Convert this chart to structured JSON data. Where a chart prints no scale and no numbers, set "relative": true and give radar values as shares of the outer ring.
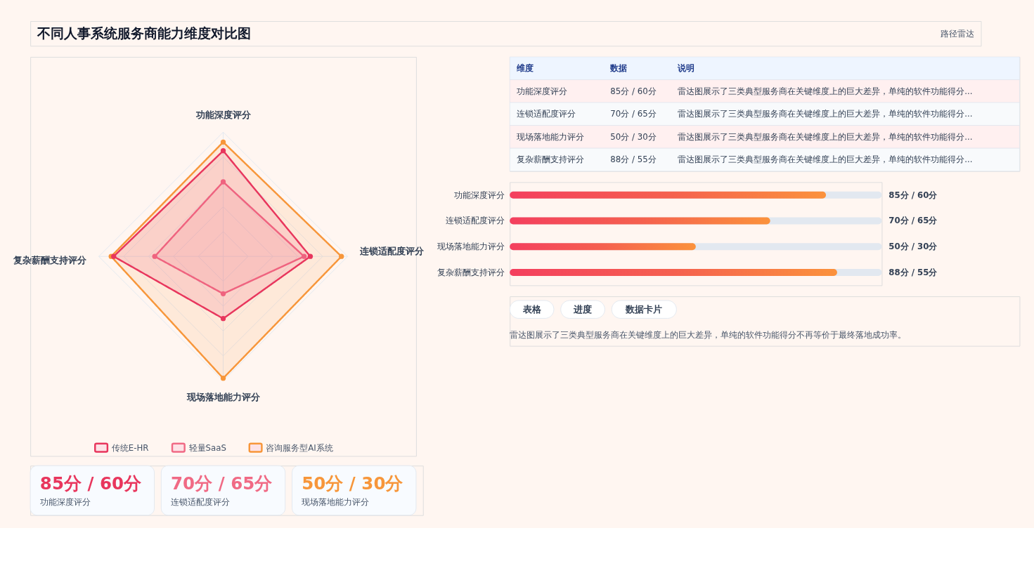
{
  "chart_data": [
    {
      "type": "other",
      "title": "不同人事系统服务商能力维度对比图",
      "annotations": [
        "路径雷达"
      ]
    },
    {
      "type": "radar",
      "relative": true,
      "categories": [
        "功能深度评分",
        "连锁适配度评分",
        "现场落地能力评分",
        "复杂薪酬支持评分"
      ],
      "marker": "circle",
      "line_style": "solid",
      "grid": true,
      "legend": "bottom",
      "series": [
        {
          "name": "传统E-HR",
          "color": "#e8365d",
          "values": [
            0.85,
            0.7,
            0.5,
            0.88
          ]
        },
        {
          "name": "轻量SaaS",
          "color": "#f06a85",
          "values": [
            0.6,
            0.65,
            0.3,
            0.55
          ]
        },
        {
          "name": "咨询服务型AI系统",
          "color": "#f7963a",
          "values": [
            0.92,
            0.95,
            0.98,
            0.9
          ]
        }
      ]
    },
    {
      "type": "other",
      "annotations": [
        "维度",
        "数据",
        "说明",
        "功能深度评分",
        "85分 / 60分",
        "雷达图展示了三类典型服务商在关键维度上的巨大差异，单纯的软件功能得分...",
        "连锁适配度评分",
        "70分 / 65分",
        "雷达图展示了三类典型服务商在关键维度上的巨大差异，单纯的软件功能得分...",
        "现场落地能力评分",
        "50分 / 30分",
        "雷达图展示了三类典型服务商在关键维度上的巨大差异，单纯的软件功能得分...",
        "复杂薪酬支持评分",
        "88分 / 55分",
        "雷达图展示了三类典型服务商在关键维度上的巨大差异，单纯的软件功能得分..."
      ]
    },
    {
      "type": "bar",
      "orientation": "horizontal",
      "categories": [
        "功能深度评分",
        "连锁适配度评分",
        "现场落地能力评分",
        "复杂薪酬支持评分"
      ],
      "values": [
        85,
        70,
        50,
        88
      ],
      "color": "#f5604f",
      "xlim": [
        0,
        100
      ],
      "tick_labels": "y",
      "value_labels": [
        "85分 / 60分",
        "70分 / 65分",
        "50分 / 30分",
        "88分 / 55分"
      ]
    },
    {
      "type": "other",
      "annotations": [
        "85分 / 60分",
        "功能深度评分",
        "70分 / 65分",
        "连锁适配度评分",
        "50分 / 30分",
        "现场落地能力评分"
      ],
      "colors": [
        "#e8365d",
        "#f06a85",
        "#f7963a"
      ]
    },
    {
      "type": "other",
      "annotations": [
        "表格",
        "进度",
        "数据卡片",
        "雷达图展示了三类典型服务商在关键维度上的巨大差异，单纯的软件功能得分不再等价于最终落地成功率。"
      ]
    }
  ]
}
